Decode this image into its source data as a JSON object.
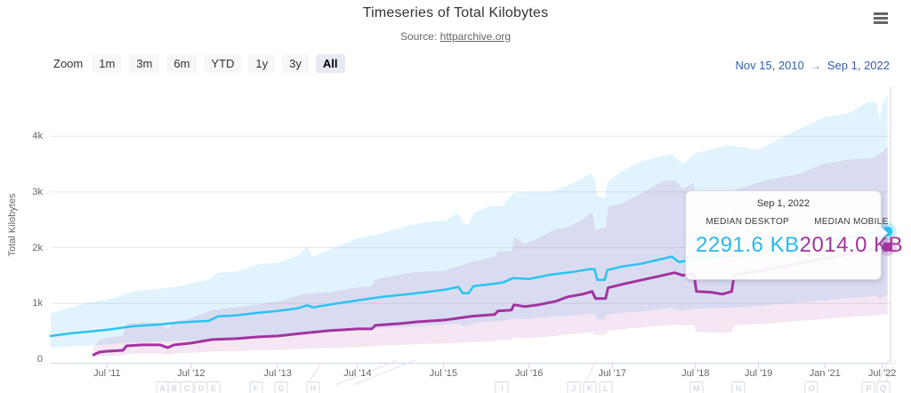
{
  "header": {
    "title": "Timeseries of Total Kilobytes",
    "source_prefix": "Source:",
    "source_link": "httparchive.org"
  },
  "toolbar": {
    "zoom_label": "Zoom",
    "buttons": [
      "1m",
      "3m",
      "6m",
      "YTD",
      "1y",
      "3y",
      "All"
    ],
    "selected": "All",
    "range_from": "Nov 15, 2010",
    "arrow": "→",
    "range_to": "Sep 1, 2022"
  },
  "tooltip": {
    "date": "Sep 1, 2022",
    "columns": [
      {
        "label": "MEDIAN DESKTOP",
        "value": "2291.6 KB",
        "color": "#2bb6ef"
      },
      {
        "label": "MEDIAN MOBILE",
        "value": "2014.0 KB",
        "color": "#a2339f"
      }
    ]
  },
  "chart_data": {
    "type": "line",
    "title": "Timeseries of Total Kilobytes",
    "source": "httparchive.org",
    "xlabel": "",
    "ylabel": "Total Kilobytes",
    "ylim": [
      0,
      4700
    ],
    "grid": true,
    "legend_position": "none",
    "x_range": [
      "Nov 15, 2010",
      "Sep 1, 2022"
    ],
    "yticks": [
      {
        "v": 0,
        "label": "0"
      },
      {
        "v": 1000,
        "label": "1k"
      },
      {
        "v": 2000,
        "label": "2k"
      },
      {
        "v": 3000,
        "label": "3k"
      },
      {
        "v": 4000,
        "label": "4k"
      }
    ],
    "xticks": [
      {
        "f": 0.067,
        "label": "Jul '11"
      },
      {
        "f": 0.167,
        "label": "Jul '12"
      },
      {
        "f": 0.27,
        "label": "Jul '13"
      },
      {
        "f": 0.365,
        "label": "Jul '14"
      },
      {
        "f": 0.467,
        "label": "Jul '15"
      },
      {
        "f": 0.569,
        "label": "Jul '16"
      },
      {
        "f": 0.668,
        "label": "Jul '17"
      },
      {
        "f": 0.767,
        "label": "Jul '18"
      },
      {
        "f": 0.842,
        "label": "Jul '19"
      },
      {
        "f": 0.921,
        "label": "Jan '21"
      },
      {
        "f": 0.989,
        "label": "Jul '22"
      }
    ],
    "series": [
      {
        "name": "MEDIAN DESKTOP",
        "color": "#29c3f1",
        "marker": "circle",
        "line_width": 2.5,
        "last_value_kb": 2291.6,
        "band": {
          "fill": "rgba(90,195,243,0.18)",
          "upper_base": 2.03,
          "upper_slope": 0,
          "lower": 0.5
        },
        "points": [
          [
            0.0,
            416
          ],
          [
            0.024,
            464
          ],
          [
            0.046,
            496
          ],
          [
            0.067,
            528
          ],
          [
            0.098,
            592
          ],
          [
            0.13,
            624
          ],
          [
            0.151,
            656
          ],
          [
            0.167,
            672
          ],
          [
            0.188,
            688
          ],
          [
            0.199,
            768
          ],
          [
            0.22,
            784
          ],
          [
            0.247,
            832
          ],
          [
            0.27,
            864
          ],
          [
            0.294,
            912
          ],
          [
            0.305,
            968
          ],
          [
            0.312,
            930
          ],
          [
            0.337,
            992
          ],
          [
            0.365,
            1056
          ],
          [
            0.395,
            1120
          ],
          [
            0.426,
            1168
          ],
          [
            0.453,
            1216
          ],
          [
            0.469,
            1248
          ],
          [
            0.485,
            1296
          ],
          [
            0.49,
            1184
          ],
          [
            0.497,
            1184
          ],
          [
            0.503,
            1312
          ],
          [
            0.522,
            1344
          ],
          [
            0.538,
            1376
          ],
          [
            0.55,
            1456
          ],
          [
            0.569,
            1440
          ],
          [
            0.596,
            1520
          ],
          [
            0.622,
            1568
          ],
          [
            0.641,
            1616
          ],
          [
            0.647,
            1616
          ],
          [
            0.65,
            1424
          ],
          [
            0.659,
            1424
          ],
          [
            0.662,
            1600
          ],
          [
            0.68,
            1664
          ],
          [
            0.702,
            1712
          ],
          [
            0.725,
            1792
          ],
          [
            0.739,
            1840
          ],
          [
            0.747,
            1744
          ],
          [
            0.754,
            1760
          ],
          [
            0.767,
            1808
          ],
          [
            0.807,
            1840
          ],
          [
            0.842,
            1904
          ],
          [
            0.881,
            2016
          ],
          [
            0.921,
            2112
          ],
          [
            0.95,
            2192
          ],
          [
            0.971,
            2240
          ],
          [
            0.982,
            2272
          ],
          [
            0.986,
            2160
          ],
          [
            0.99,
            2272
          ],
          [
            0.9955,
            2291.6
          ]
        ]
      },
      {
        "name": "MEDIAN MOBILE",
        "color": "#a2339f",
        "marker": "square",
        "line_width": 3,
        "last_value_kb": 2014.0,
        "band": {
          "fill": "rgba(162,51,159,0.12)",
          "upper_base": 2.7,
          "upper_slope": -0.85,
          "lower": 0.4
        },
        "points": [
          [
            0.051,
            80
          ],
          [
            0.058,
            128
          ],
          [
            0.067,
            144
          ],
          [
            0.086,
            160
          ],
          [
            0.09,
            240
          ],
          [
            0.109,
            256
          ],
          [
            0.13,
            256
          ],
          [
            0.139,
            208
          ],
          [
            0.147,
            256
          ],
          [
            0.167,
            288
          ],
          [
            0.192,
            352
          ],
          [
            0.22,
            368
          ],
          [
            0.247,
            400
          ],
          [
            0.27,
            416
          ],
          [
            0.299,
            464
          ],
          [
            0.331,
            512
          ],
          [
            0.365,
            544
          ],
          [
            0.382,
            544
          ],
          [
            0.386,
            608
          ],
          [
            0.416,
            640
          ],
          [
            0.437,
            672
          ],
          [
            0.469,
            704
          ],
          [
            0.5,
            768
          ],
          [
            0.528,
            800
          ],
          [
            0.532,
            864
          ],
          [
            0.548,
            880
          ],
          [
            0.551,
            976
          ],
          [
            0.564,
            944
          ],
          [
            0.58,
            976
          ],
          [
            0.601,
            1040
          ],
          [
            0.615,
            1120
          ],
          [
            0.633,
            1168
          ],
          [
            0.644,
            1216
          ],
          [
            0.648,
            1088
          ],
          [
            0.66,
            1088
          ],
          [
            0.663,
            1280
          ],
          [
            0.68,
            1344
          ],
          [
            0.704,
            1424
          ],
          [
            0.728,
            1504
          ],
          [
            0.742,
            1552
          ],
          [
            0.752,
            1504
          ],
          [
            0.765,
            1536
          ],
          [
            0.768,
            1216
          ],
          [
            0.786,
            1200
          ],
          [
            0.799,
            1168
          ],
          [
            0.81,
            1216
          ],
          [
            0.813,
            1520
          ],
          [
            0.85,
            1600
          ],
          [
            0.892,
            1728
          ],
          [
            0.921,
            1808
          ],
          [
            0.955,
            1904
          ],
          [
            0.977,
            1968
          ],
          [
            0.987,
            1984
          ],
          [
            0.9955,
            2014
          ]
        ]
      }
    ],
    "flags": [
      {
        "f": 0.133,
        "label": "A"
      },
      {
        "f": 0.147,
        "label": "B"
      },
      {
        "f": 0.162,
        "label": "C"
      },
      {
        "f": 0.179,
        "label": "D"
      },
      {
        "f": 0.194,
        "label": "E"
      },
      {
        "f": 0.244,
        "label": "F"
      },
      {
        "f": 0.274,
        "label": "G"
      },
      {
        "f": 0.312,
        "label": "H"
      },
      {
        "f": 0.537,
        "label": "I"
      },
      {
        "f": 0.622,
        "label": "J"
      },
      {
        "f": 0.641,
        "label": "K"
      },
      {
        "f": 0.66,
        "label": "L"
      },
      {
        "f": 0.768,
        "label": "M"
      },
      {
        "f": 0.818,
        "label": "N"
      },
      {
        "f": 0.905,
        "label": "O"
      },
      {
        "f": 0.973,
        "label": "P"
      },
      {
        "f": 0.99,
        "label": "Q"
      }
    ],
    "flag_leaders": [
      [
        345,
        433,
        362,
        407
      ],
      [
        377,
        433,
        447,
        405
      ],
      [
        397,
        433,
        467,
        405
      ],
      [
        657,
        433,
        670,
        405
      ],
      [
        985,
        433,
        999,
        405
      ],
      [
        995,
        433,
        1006,
        405
      ]
    ],
    "crosshair_x_f": 0.999,
    "colors": {
      "gridline": "#e6e6e6",
      "axis_line": "#ccd6eb",
      "crosshair": "#d4d4d8",
      "tick": "#ccd6eb"
    }
  }
}
